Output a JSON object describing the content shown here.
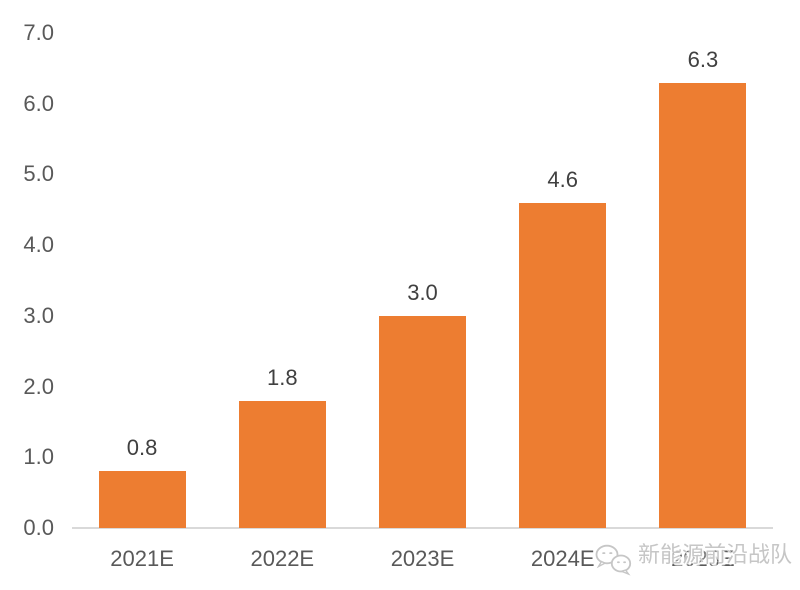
{
  "chart_data": {
    "type": "bar",
    "title": "",
    "xlabel": "",
    "ylabel": "",
    "categories": [
      "2021E",
      "2022E",
      "2023E",
      "2024E",
      "2025E"
    ],
    "values": [
      0.8,
      1.8,
      3.0,
      4.6,
      6.3
    ],
    "value_labels": [
      "0.8",
      "1.8",
      "3.0",
      "4.6",
      "6.3"
    ],
    "ylim": [
      0,
      7
    ],
    "ytick_values": [
      0,
      1,
      2,
      3,
      4,
      5,
      6,
      7
    ],
    "ytick_labels": [
      "0.0",
      "1.0",
      "2.0",
      "3.0",
      "4.0",
      "5.0",
      "6.0",
      "7.0"
    ],
    "grid": false,
    "legend": "none",
    "bar_color": "#ED7D31"
  },
  "colors": {
    "bar": "#ED7D31",
    "value_label": "#404040",
    "axis_label": "#595959",
    "axis_line": "#D9D9D9",
    "watermark": "#C6C6C6"
  },
  "watermark": {
    "icon": "wechat-icon",
    "text": "新能源前沿战队"
  }
}
